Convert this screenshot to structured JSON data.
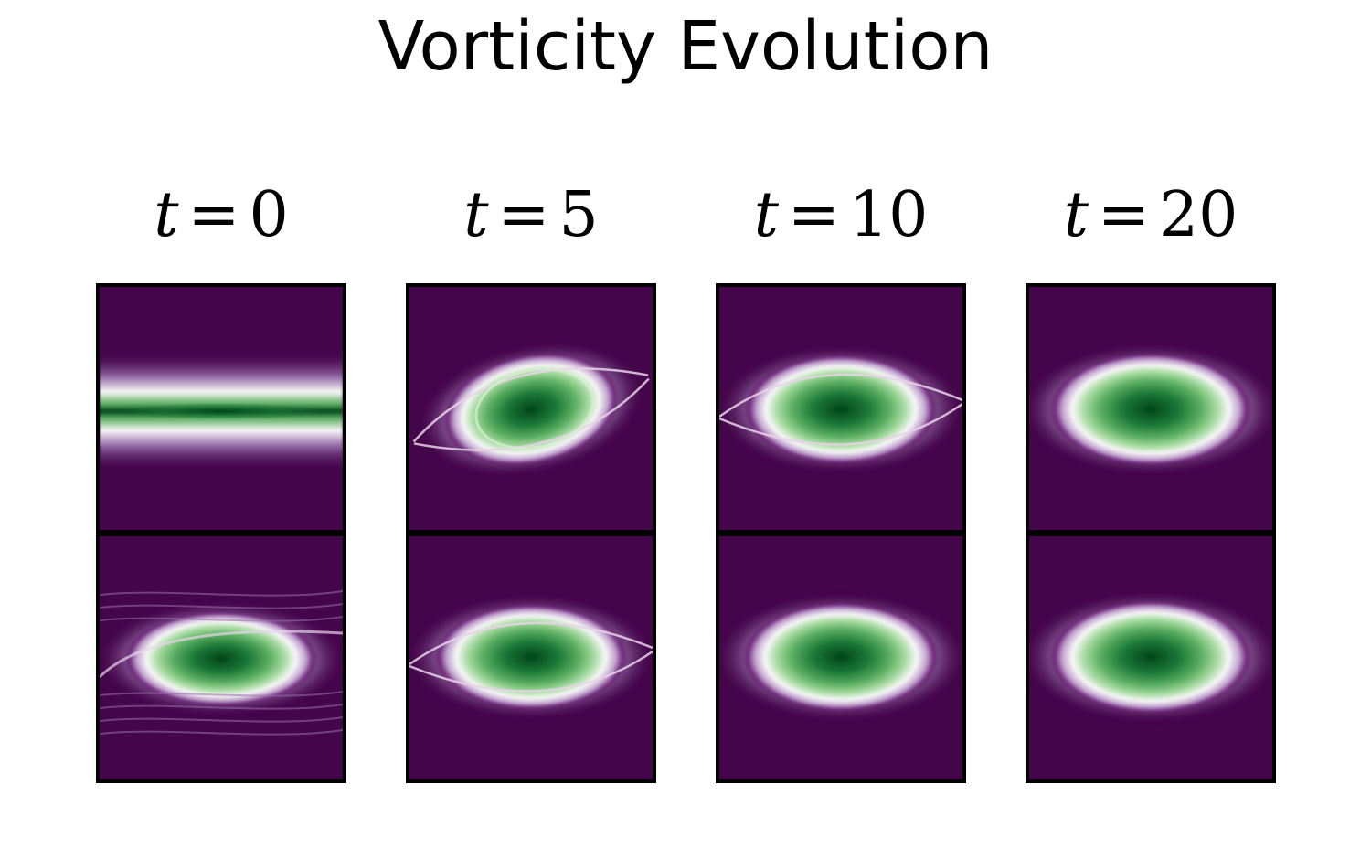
{
  "title": "Vorticity Evolution",
  "chart_data": {
    "type": "heatmap",
    "title": "Vorticity Evolution",
    "colormap": "PRGn",
    "colors": {
      "background": "#44054a",
      "core": "#00441b",
      "ring": "#f7f7f7"
    },
    "rows": 2,
    "columns": [
      {
        "var": "t",
        "eq": "=",
        "value": "0"
      },
      {
        "var": "t",
        "eq": "=",
        "value": "5"
      },
      {
        "var": "t",
        "eq": "=",
        "value": "10"
      },
      {
        "var": "t",
        "eq": "=",
        "value": "20"
      }
    ],
    "panels": [
      {
        "row": 0,
        "col": 0,
        "state": "flat shear layer"
      },
      {
        "row": 0,
        "col": 1,
        "state": "rolled-up vortex with spiral arms"
      },
      {
        "row": 0,
        "col": 2,
        "state": "elliptical vortex with filaments"
      },
      {
        "row": 0,
        "col": 3,
        "state": "smooth elliptical vortex"
      },
      {
        "row": 1,
        "col": 0,
        "state": "vortex with multiple filaments"
      },
      {
        "row": 1,
        "col": 1,
        "state": "elliptical vortex with thin tails"
      },
      {
        "row": 1,
        "col": 2,
        "state": "elliptical vortex"
      },
      {
        "row": 1,
        "col": 3,
        "state": "smooth elliptical vortex"
      }
    ]
  }
}
